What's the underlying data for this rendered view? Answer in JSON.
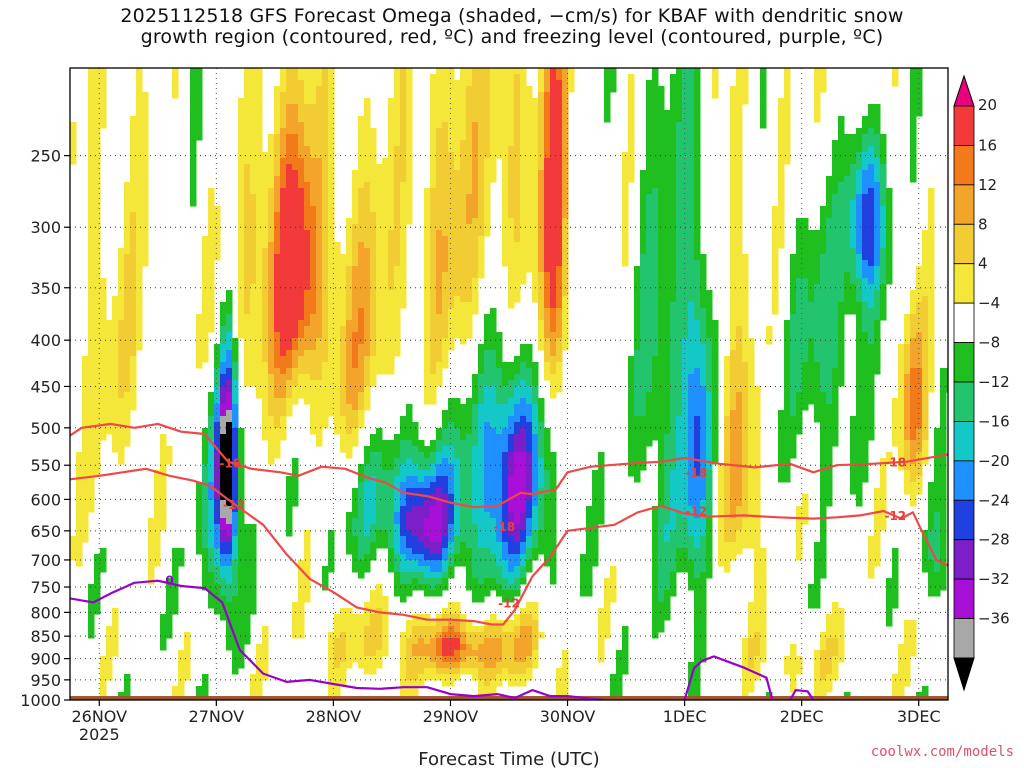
{
  "title": "2025112518 GFS Forecast Omega (shaded, −cm/s) for KBAF with dendritic snow\ngrowth region (contoured, red, ºC) and freezing level (contoured, purple, ºC)",
  "credit": "coolwx.com/models",
  "colors": {
    "ground": "#a0522d",
    "dgz_contour": "#f04848",
    "freezing_contour": "#9900cc"
  },
  "chart_data": {
    "type": "heatmap",
    "title": "2025112518 GFS Forecast Omega (shaded, −cm/s) for KBAF with dendritic snow growth region (contoured, red, ºC) and freezing level (contoured, purple, ºC)",
    "xlabel": "Forecast Time (UTC)",
    "ylabel": "",
    "x_ticks": [
      {
        "label": "26NOV",
        "sublabel": "2025",
        "day": 0
      },
      {
        "label": "27NOV",
        "day": 1
      },
      {
        "label": "28NOV",
        "day": 2
      },
      {
        "label": "29NOV",
        "day": 3
      },
      {
        "label": "30NOV",
        "day": 4
      },
      {
        "label": "1DEC",
        "day": 5
      },
      {
        "label": "2DEC",
        "day": 6
      },
      {
        "label": "3DEC",
        "day": 7
      }
    ],
    "x_range_days": [
      -0.25,
      7.25
    ],
    "y_axis": "pressure (hPa), inverted",
    "y_ticks": [
      250,
      300,
      350,
      400,
      450,
      500,
      550,
      600,
      650,
      700,
      750,
      800,
      850,
      900,
      950,
      1000
    ],
    "y_range": [
      1000,
      200
    ],
    "grid": true,
    "colorbar": {
      "levels": [
        -36,
        -32,
        -28,
        -24,
        -20,
        -16,
        -12,
        -8,
        -4,
        4,
        8,
        12,
        16,
        20
      ],
      "labels": [
        "20",
        "16",
        "12",
        "8",
        "4",
        "−4",
        "−8",
        "−12",
        "−16",
        "−20",
        "−24",
        "−28",
        "−32",
        "−36"
      ],
      "colors_top_to_bottom": [
        "#e8007f",
        "#f23a3a",
        "#f27a1a",
        "#f2a52a",
        "#f2cc33",
        "#f5e63a",
        "#ffffff",
        "#1fbf1f",
        "#22c46e",
        "#14c8c8",
        "#1e90ff",
        "#2040e0",
        "#7d1fc8",
        "#a810d8",
        "#a8a8a8",
        "#000000"
      ]
    },
    "contours": [
      {
        "name": "-18",
        "points": [
          [
            -0.25,
            510
          ],
          [
            -0.15,
            500
          ],
          [
            0.1,
            495
          ],
          [
            0.3,
            500
          ],
          [
            0.5,
            495
          ],
          [
            0.7,
            505
          ],
          [
            0.9,
            508
          ],
          [
            1.1,
            545
          ],
          [
            1.3,
            555
          ],
          [
            1.55,
            560
          ],
          [
            1.7,
            565
          ],
          [
            1.9,
            552
          ],
          [
            2.1,
            555
          ],
          [
            2.3,
            568
          ],
          [
            2.45,
            575
          ],
          [
            2.6,
            590
          ],
          [
            2.8,
            595
          ],
          [
            3.0,
            605
          ],
          [
            3.2,
            612
          ],
          [
            3.4,
            610
          ],
          [
            3.6,
            590
          ],
          [
            3.7,
            592
          ],
          [
            3.9,
            585
          ],
          [
            4.0,
            560
          ],
          [
            4.2,
            552
          ],
          [
            4.5,
            548
          ],
          [
            4.8,
            545
          ],
          [
            5.0,
            540
          ],
          [
            5.3,
            548
          ],
          [
            5.6,
            553
          ],
          [
            5.9,
            548
          ],
          [
            6.1,
            560
          ],
          [
            6.3,
            550
          ],
          [
            6.6,
            548
          ],
          [
            6.9,
            545
          ],
          [
            7.25,
            535
          ]
        ],
        "labels": [
          {
            "text": "-18",
            "x": 1.12,
            "y": 553
          },
          {
            "text": "-18",
            "x": 3.46,
            "y": 650
          },
          {
            "text": "-18",
            "x": 5.1,
            "y": 567
          },
          {
            "text": "-18",
            "x": 6.8,
            "y": 552
          }
        ]
      },
      {
        "name": "-12",
        "points": [
          [
            -0.25,
            570
          ],
          [
            0.0,
            565
          ],
          [
            0.2,
            560
          ],
          [
            0.4,
            555
          ],
          [
            0.6,
            565
          ],
          [
            0.8,
            572
          ],
          [
            0.95,
            580
          ],
          [
            1.1,
            600
          ],
          [
            1.25,
            620
          ],
          [
            1.4,
            640
          ],
          [
            1.6,
            690
          ],
          [
            1.8,
            735
          ],
          [
            2.0,
            760
          ],
          [
            2.2,
            790
          ],
          [
            2.4,
            800
          ],
          [
            2.6,
            805
          ],
          [
            2.8,
            815
          ],
          [
            3.0,
            815
          ],
          [
            3.2,
            818
          ],
          [
            3.35,
            825
          ],
          [
            3.45,
            825
          ],
          [
            3.55,
            795
          ],
          [
            3.7,
            730
          ],
          [
            3.85,
            695
          ],
          [
            4.0,
            650
          ],
          [
            4.2,
            645
          ],
          [
            4.4,
            640
          ],
          [
            4.6,
            620
          ],
          [
            4.8,
            610
          ],
          [
            5.0,
            622
          ],
          [
            5.2,
            627
          ],
          [
            5.5,
            625
          ],
          [
            5.8,
            628
          ],
          [
            6.1,
            630
          ],
          [
            6.3,
            628
          ],
          [
            6.5,
            625
          ],
          [
            6.7,
            618
          ],
          [
            6.85,
            630
          ],
          [
            6.95,
            620
          ],
          [
            7.05,
            660
          ],
          [
            7.15,
            700
          ],
          [
            7.25,
            710
          ]
        ],
        "labels": [
          {
            "text": "-12",
            "x": 1.15,
            "y": 615
          },
          {
            "text": "-12",
            "x": 3.5,
            "y": 790
          },
          {
            "text": "-12",
            "x": 5.1,
            "y": 625
          },
          {
            "text": "-12",
            "x": 6.8,
            "y": 632
          }
        ]
      },
      {
        "name": "0",
        "points": [
          [
            -0.25,
            772
          ],
          [
            -0.05,
            780
          ],
          [
            0.1,
            762
          ],
          [
            0.3,
            742
          ],
          [
            0.5,
            738
          ],
          [
            0.7,
            748
          ],
          [
            0.9,
            752
          ],
          [
            1.05,
            780
          ],
          [
            1.2,
            880
          ],
          [
            1.4,
            935
          ],
          [
            1.6,
            955
          ],
          [
            1.8,
            950
          ],
          [
            2.0,
            960
          ],
          [
            2.2,
            970
          ],
          [
            2.4,
            972
          ],
          [
            2.6,
            968
          ],
          [
            2.8,
            968
          ],
          [
            3.0,
            985
          ],
          [
            3.2,
            990
          ],
          [
            3.4,
            985
          ],
          [
            3.55,
            995
          ],
          [
            3.7,
            975
          ],
          [
            3.85,
            990
          ],
          [
            4.0,
            990
          ],
          [
            4.3,
            1000
          ]
        ],
        "labels": [
          {
            "text": "0",
            "x": 0.6,
            "y": 745
          }
        ]
      },
      {
        "name": "0b",
        "points": [
          [
            5.0,
            1000
          ],
          [
            5.08,
            922
          ],
          [
            5.15,
            905
          ],
          [
            5.25,
            895
          ],
          [
            5.35,
            905
          ],
          [
            5.5,
            920
          ],
          [
            5.7,
            945
          ],
          [
            5.75,
            1000
          ]
        ],
        "labels": []
      },
      {
        "name": "0c",
        "points": [
          [
            5.9,
            1000
          ],
          [
            5.95,
            975
          ],
          [
            6.05,
            978
          ],
          [
            6.1,
            1000
          ]
        ],
        "labels": []
      }
    ],
    "blobs": [
      {
        "day": 0.05,
        "p": 380,
        "rx": 0.45,
        "ry": 200,
        "v": 6
      },
      {
        "day": 1.1,
        "p": 560,
        "rx": 0.08,
        "ry": 170,
        "v": -30
      },
      {
        "day": 1.05,
        "p": 520,
        "rx": 0.2,
        "ry": 260,
        "v": -16
      },
      {
        "day": 1.1,
        "p": 380,
        "rx": 0.25,
        "ry": 140,
        "v": 14
      },
      {
        "day": 1.55,
        "p": 330,
        "rx": 0.25,
        "ry": 140,
        "v": 12
      },
      {
        "day": 1.7,
        "p": 330,
        "rx": 0.2,
        "ry": 110,
        "v": 16
      },
      {
        "day": 2.2,
        "p": 400,
        "rx": 0.35,
        "ry": 170,
        "v": 12
      },
      {
        "day": 2.45,
        "p": 600,
        "rx": 0.45,
        "ry": 120,
        "v": -12
      },
      {
        "day": 2.8,
        "p": 640,
        "rx": 0.25,
        "ry": 90,
        "v": -20
      },
      {
        "day": 2.5,
        "p": 860,
        "rx": 0.7,
        "ry": 90,
        "v": 8
      },
      {
        "day": 3.05,
        "p": 880,
        "rx": 0.25,
        "ry": 60,
        "v": 16
      },
      {
        "day": 3.0,
        "p": 330,
        "rx": 0.35,
        "ry": 170,
        "v": 14
      },
      {
        "day": 3.55,
        "p": 300,
        "rx": 0.3,
        "ry": 200,
        "v": 12
      },
      {
        "day": 3.55,
        "p": 560,
        "rx": 0.25,
        "ry": 150,
        "v": -20
      },
      {
        "day": 3.35,
        "p": 520,
        "rx": 0.55,
        "ry": 250,
        "v": -12
      },
      {
        "day": 3.55,
        "p": 870,
        "rx": 0.35,
        "ry": 90,
        "v": 12
      },
      {
        "day": 3.9,
        "p": 320,
        "rx": 0.12,
        "ry": 180,
        "v": 22
      },
      {
        "day": 4.8,
        "p": 480,
        "rx": 0.2,
        "ry": 300,
        "v": -10
      },
      {
        "day": 5.1,
        "p": 500,
        "rx": 0.13,
        "ry": 260,
        "v": -20
      },
      {
        "day": 5.4,
        "p": 350,
        "rx": 0.2,
        "ry": 200,
        "v": 6
      },
      {
        "day": 5.5,
        "p": 600,
        "rx": 0.15,
        "ry": 150,
        "v": 12
      },
      {
        "day": 6.2,
        "p": 400,
        "rx": 0.3,
        "ry": 150,
        "v": -10
      },
      {
        "day": 6.55,
        "p": 290,
        "rx": 0.18,
        "ry": 70,
        "v": -26
      },
      {
        "day": 6.35,
        "p": 230,
        "rx": 0.4,
        "ry": 80,
        "v": 6
      },
      {
        "day": 6.95,
        "p": 470,
        "rx": 0.12,
        "ry": 120,
        "v": 16
      },
      {
        "day": 7.2,
        "p": 700,
        "rx": 0.15,
        "ry": 100,
        "v": -10
      },
      {
        "day": 6.0,
        "p": 900,
        "rx": 0.7,
        "ry": 80,
        "v": 5
      }
    ]
  }
}
